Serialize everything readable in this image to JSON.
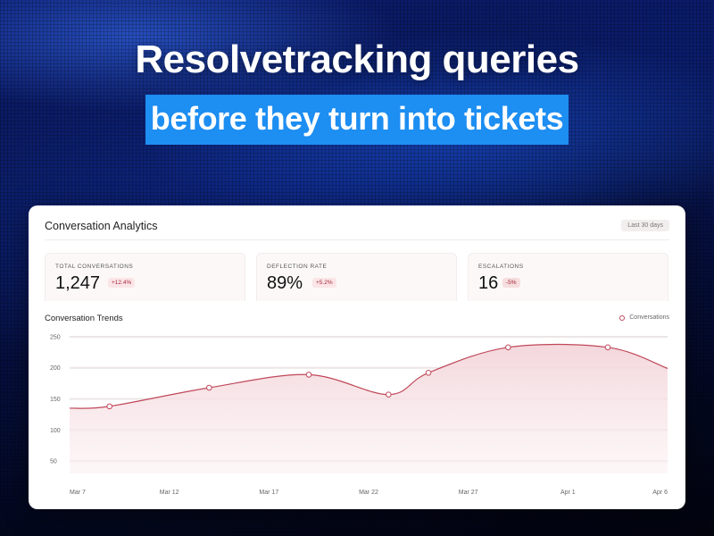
{
  "hero": {
    "headline": "Resolvetracking queries",
    "subhead": "before they turn into tickets"
  },
  "card": {
    "title": "Conversation Analytics",
    "range": "Last 30 days",
    "stats": [
      {
        "label": "TOTAL CONVERSATIONS",
        "value": "1,247",
        "change": "+12.4%"
      },
      {
        "label": "DEFLECTION RATE",
        "value": "89%",
        "change": "+5.2%"
      },
      {
        "label": "ESCALATIONS",
        "value": "16",
        "change": "-5%"
      }
    ],
    "trends_title": "Conversation Trends",
    "legend": "Conversations"
  },
  "colors": {
    "accent_blue": "#1d8ef2",
    "line": "#c0485a",
    "area": "#f7e3e6"
  },
  "chart_data": {
    "type": "area",
    "title": "Conversation Trends",
    "x_ticks": [
      "Mar 7",
      "Mar 12",
      "Mar 17",
      "Mar 22",
      "Mar 27",
      "Apr 1",
      "Apr 6"
    ],
    "y_ticks": [
      50,
      100,
      150,
      200,
      250
    ],
    "ylim": [
      30,
      260
    ],
    "legend_position": "top-right",
    "grid": true,
    "series": [
      {
        "name": "Conversations",
        "x": [
          "Mar 5",
          "Mar 9",
          "Mar 14",
          "Mar 19",
          "Mar 23",
          "Mar 25",
          "Mar 29",
          "Apr 3",
          "Apr 7"
        ],
        "values": [
          135,
          138,
          168,
          189,
          157,
          192,
          233,
          233,
          199
        ],
        "markers": [
          false,
          true,
          true,
          true,
          true,
          true,
          true,
          true,
          false
        ]
      }
    ]
  }
}
